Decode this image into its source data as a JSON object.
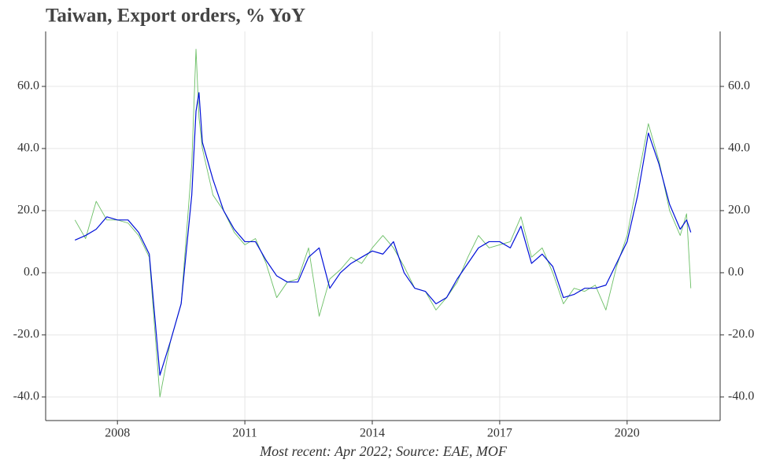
{
  "chart_data": {
    "type": "line",
    "title": "Taiwan, Export orders, % YoY",
    "footnote": "Most recent: Apr 2022; Source: EAE, MOF",
    "x": [
      2007,
      2007.25,
      2007.5,
      2007.75,
      2008,
      2008.25,
      2008.5,
      2008.75,
      2009,
      2009.25,
      2009.5,
      2009.75,
      2009.85,
      2009.92,
      2010,
      2010.25,
      2010.5,
      2010.75,
      2011,
      2011.25,
      2011.5,
      2011.75,
      2012,
      2012.25,
      2012.5,
      2012.75,
      2013,
      2013.25,
      2013.5,
      2013.75,
      2014,
      2014.25,
      2014.5,
      2014.75,
      2015,
      2015.25,
      2015.5,
      2015.75,
      2016,
      2016.25,
      2016.5,
      2016.75,
      2017,
      2017.25,
      2017.5,
      2017.75,
      2018,
      2018.25,
      2018.5,
      2018.75,
      2019,
      2019.25,
      2019.5,
      2019.75,
      2020,
      2020.25,
      2020.5,
      2020.75,
      2021,
      2021.25,
      2021.4,
      2021.5
    ],
    "series": [
      {
        "color": "#6cbf66",
        "width": 0.9,
        "values": [
          17,
          11,
          23,
          17,
          17,
          16,
          12,
          5,
          -40,
          -22,
          -10,
          35,
          72,
          50,
          40,
          25,
          20,
          13,
          9,
          11,
          3,
          -8,
          -3,
          -2,
          8,
          -14,
          -2,
          1,
          5,
          3,
          8,
          12,
          8,
          2,
          -5,
          -6,
          -12,
          -8,
          -3,
          5,
          12,
          8,
          9,
          10,
          18,
          5,
          8,
          0,
          -10,
          -5,
          -6,
          -4,
          -12,
          2,
          12,
          30,
          48,
          36,
          20,
          12,
          19,
          -5
        ]
      },
      {
        "color": "#0010d8",
        "width": 1.2,
        "values": [
          10.5,
          12,
          14,
          18,
          17,
          17,
          13,
          6,
          -33,
          -22,
          -10,
          25,
          52,
          58,
          42,
          30,
          20,
          14,
          10,
          10,
          4,
          -1,
          -3,
          -3,
          5,
          8,
          -5,
          0,
          3,
          5,
          7,
          6,
          10,
          0,
          -5,
          -6,
          -10,
          -8,
          -2,
          3,
          8,
          10,
          10,
          8,
          15,
          3,
          6,
          2,
          -8,
          -7,
          -5,
          -5,
          -4,
          3,
          10,
          25,
          45,
          35,
          22,
          14,
          17,
          13
        ]
      }
    ],
    "xlim": [
      2006.31,
      2022.19
    ],
    "xticks": [
      2008,
      2011,
      2014,
      2017,
      2020
    ],
    "ylim": [
      -47.6,
      77.7
    ],
    "yticks": [
      {
        "value": -40,
        "label": "-40.0"
      },
      {
        "value": -20,
        "label": "-20.0"
      },
      {
        "value": 0,
        "label": "0.0"
      },
      {
        "value": 20,
        "label": "20.0"
      },
      {
        "value": 40,
        "label": "40.0"
      },
      {
        "value": 60,
        "label": "60.0"
      }
    ],
    "y2lim": [
      -47.6,
      77.7
    ],
    "y2ticks": [
      {
        "value": -40,
        "label": "-40.0"
      },
      {
        "value": -20,
        "label": "-20.0"
      },
      {
        "value": 0,
        "label": "0.0"
      },
      {
        "value": 20,
        "label": "20.0"
      },
      {
        "value": 40,
        "label": "40.0"
      },
      {
        "value": 60,
        "label": "60.0"
      }
    ],
    "grid": true
  }
}
